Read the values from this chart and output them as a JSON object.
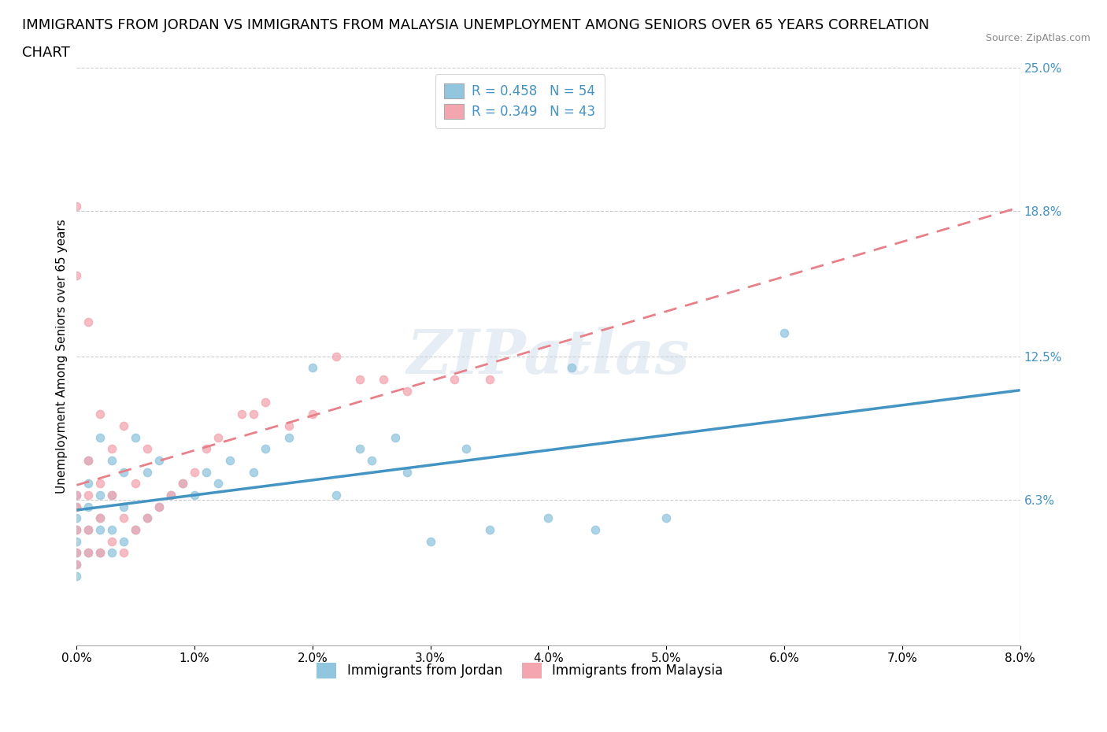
{
  "title_line1": "IMMIGRANTS FROM JORDAN VS IMMIGRANTS FROM MALAYSIA UNEMPLOYMENT AMONG SENIORS OVER 65 YEARS CORRELATION",
  "title_line2": "CHART",
  "source": "Source: ZipAtlas.com",
  "ylabel": "Unemployment Among Seniors over 65 years",
  "xlim": [
    0.0,
    0.08
  ],
  "ylim": [
    0.0,
    0.25
  ],
  "xtick_vals": [
    0.0,
    0.01,
    0.02,
    0.03,
    0.04,
    0.05,
    0.06,
    0.07,
    0.08
  ],
  "xtick_labels": [
    "0.0%",
    "1.0%",
    "2.0%",
    "3.0%",
    "4.0%",
    "5.0%",
    "6.0%",
    "7.0%",
    "8.0%"
  ],
  "ytick_right_labels": [
    "6.3%",
    "12.5%",
    "18.8%",
    "25.0%"
  ],
  "ytick_right_values": [
    0.063,
    0.125,
    0.188,
    0.25
  ],
  "color_jordan": "#92c5de",
  "color_malaysia": "#f4a6b0",
  "color_jordan_line": "#4393c3",
  "color_malaysia_line": "#e8808a",
  "R_jordan": 0.458,
  "N_jordan": 54,
  "R_malaysia": 0.349,
  "N_malaysia": 43,
  "legend_label_jordan": "Immigrants from Jordan",
  "legend_label_malaysia": "Immigrants from Malaysia",
  "watermark": "ZIPatlas",
  "jordan_x": [
    0.0,
    0.0,
    0.0,
    0.0,
    0.0,
    0.0,
    0.0,
    0.0,
    0.001,
    0.001,
    0.001,
    0.001,
    0.001,
    0.002,
    0.002,
    0.002,
    0.002,
    0.002,
    0.003,
    0.003,
    0.003,
    0.003,
    0.004,
    0.004,
    0.004,
    0.005,
    0.005,
    0.006,
    0.006,
    0.007,
    0.007,
    0.008,
    0.009,
    0.01,
    0.011,
    0.012,
    0.013,
    0.015,
    0.016,
    0.018,
    0.02,
    0.022,
    0.024,
    0.025,
    0.027,
    0.028,
    0.03,
    0.033,
    0.035,
    0.04,
    0.042,
    0.044,
    0.05,
    0.06
  ],
  "jordan_y": [
    0.035,
    0.04,
    0.045,
    0.05,
    0.055,
    0.06,
    0.065,
    0.03,
    0.04,
    0.05,
    0.06,
    0.07,
    0.08,
    0.04,
    0.05,
    0.055,
    0.065,
    0.09,
    0.04,
    0.05,
    0.065,
    0.08,
    0.045,
    0.06,
    0.075,
    0.05,
    0.09,
    0.055,
    0.075,
    0.06,
    0.08,
    0.065,
    0.07,
    0.065,
    0.075,
    0.07,
    0.08,
    0.075,
    0.085,
    0.09,
    0.12,
    0.065,
    0.085,
    0.08,
    0.09,
    0.075,
    0.045,
    0.085,
    0.05,
    0.055,
    0.12,
    0.05,
    0.055,
    0.135
  ],
  "malaysia_x": [
    0.0,
    0.0,
    0.0,
    0.0,
    0.0,
    0.0,
    0.0,
    0.001,
    0.001,
    0.001,
    0.001,
    0.001,
    0.002,
    0.002,
    0.002,
    0.002,
    0.003,
    0.003,
    0.003,
    0.004,
    0.004,
    0.004,
    0.005,
    0.005,
    0.006,
    0.006,
    0.007,
    0.008,
    0.009,
    0.01,
    0.011,
    0.012,
    0.014,
    0.015,
    0.016,
    0.018,
    0.02,
    0.022,
    0.024,
    0.026,
    0.028,
    0.032,
    0.035
  ],
  "malaysia_y": [
    0.035,
    0.04,
    0.05,
    0.06,
    0.065,
    0.19,
    0.16,
    0.04,
    0.05,
    0.065,
    0.08,
    0.14,
    0.04,
    0.055,
    0.07,
    0.1,
    0.045,
    0.065,
    0.085,
    0.04,
    0.055,
    0.095,
    0.05,
    0.07,
    0.055,
    0.085,
    0.06,
    0.065,
    0.07,
    0.075,
    0.085,
    0.09,
    0.1,
    0.1,
    0.105,
    0.095,
    0.1,
    0.125,
    0.115,
    0.115,
    0.11,
    0.115,
    0.115
  ],
  "grid_color": "#cccccc",
  "background_color": "#ffffff",
  "title_fontsize": 13,
  "axis_label_fontsize": 11,
  "tick_fontsize": 11,
  "legend_fontsize": 12
}
